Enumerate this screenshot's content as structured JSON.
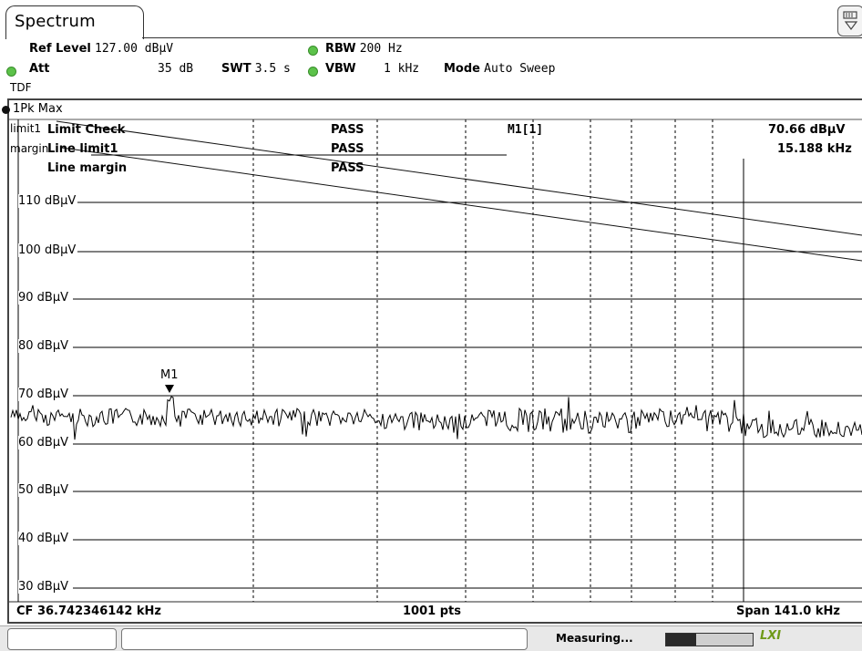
{
  "tab": {
    "label": "Spectrum"
  },
  "settings": {
    "ref_level_label": "Ref Level",
    "ref_level_value": "127.00 dBµV",
    "att_label": "Att",
    "att_value": "35 dB",
    "swt_label": "SWT",
    "swt_value": "3.5 s",
    "rbw_label": "RBW",
    "rbw_value": "200 Hz",
    "vbw_label": "VBW",
    "vbw_value": "1 kHz",
    "mode_label": "Mode",
    "mode_value": "Auto Sweep",
    "tdf": "TDF"
  },
  "trace": {
    "legend": "1Pk Max"
  },
  "limit_table": {
    "limit_check_label": "Limit Check",
    "limit_check_result": "PASS",
    "line1_label": "Line limit1",
    "line1_result": "PASS",
    "line2_label": "Line margin",
    "line2_result": "PASS"
  },
  "marker_info": {
    "name": "M1[1]",
    "level": "70.66 dBµV",
    "freq": "15.188 kHz",
    "marker_label": "M1"
  },
  "line_labels": {
    "limit1": "limit1",
    "margin": "margin"
  },
  "y_axis_labels": [
    "110 dBµV",
    "100 dBµV",
    "90 dBµV",
    "80 dBµV",
    "70 dBµV",
    "60 dBµV",
    "50 dBµV",
    "40 dBµV",
    "30 dBµV"
  ],
  "footer": {
    "cf": "CF 36.742346142 kHz",
    "pts": "1001 pts",
    "span": "Span 141.0 kHz"
  },
  "status": {
    "measuring": "Measuring...",
    "lxi": "LXI",
    "progress": 0.35
  },
  "colors": {
    "status_green": "#5cc24a",
    "lxi": "#6f9a19"
  }
}
